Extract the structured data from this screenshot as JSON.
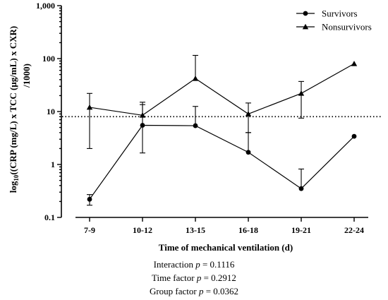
{
  "chart_data": {
    "type": "line",
    "categories": [
      "7-9",
      "10-12",
      "13-15",
      "16-18",
      "19-21",
      "22-24"
    ],
    "y_scale": "log",
    "ylim": [
      0.1,
      1000
    ],
    "y_ticks": [
      {
        "value": 0.1,
        "label": "0.1"
      },
      {
        "value": 1,
        "label": "1"
      },
      {
        "value": 10,
        "label": "10"
      },
      {
        "value": 100,
        "label": "100"
      },
      {
        "value": 1000,
        "label": "1,000"
      }
    ],
    "ylabel_line1_prefix": "log",
    "ylabel_subscript": "10",
    "ylabel_line1_suffix": "((CRP (mg/L) x TCC (μg/mL) x CXR)",
    "ylabel_line2": "/1000)",
    "xlabel": "Time of mechanical ventilation (d)",
    "reference_line": {
      "value": 8.0,
      "style": "dotted"
    },
    "legend_position": "top-right",
    "series": [
      {
        "name": "Survivors",
        "marker": "circle",
        "color": "#000000",
        "values": [
          0.22,
          5.5,
          5.4,
          1.7,
          0.35,
          3.4
        ],
        "error_upper": [
          0.27,
          15,
          12.5,
          4.0,
          0.82,
          null
        ],
        "error_lower": [
          0.17,
          1.65,
          null,
          null,
          null,
          null
        ]
      },
      {
        "name": "Nonsurvivors",
        "marker": "triangle",
        "color": "#000000",
        "values": [
          12,
          8.5,
          42,
          9.0,
          22,
          80
        ],
        "error_upper": [
          22,
          13.5,
          115,
          14.5,
          37,
          null
        ],
        "error_lower": [
          2.0,
          null,
          null,
          4.0,
          7.5,
          null
        ]
      }
    ]
  },
  "stats": {
    "interaction_text": "Interaction ",
    "interaction_p": "p",
    "interaction_value": " = 0.1116",
    "time_text": "Time factor ",
    "time_p": "p",
    "time_value": " = 0.2912",
    "group_text": "Group factor ",
    "group_p": "p",
    "group_value": " = 0.0362"
  }
}
